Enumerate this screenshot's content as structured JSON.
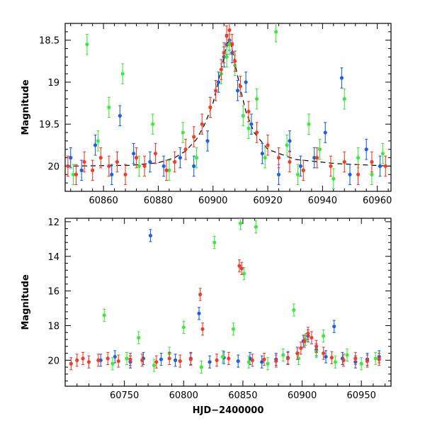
{
  "chart_data": [
    {
      "type": "scatter",
      "title": "",
      "xlabel": "",
      "ylabel": "Magnitude",
      "xlim": [
        60846,
        60965
      ],
      "ylim": [
        20.3,
        18.3
      ],
      "y_inverted": true,
      "xticks": [
        60860,
        60880,
        60900,
        60920,
        60940,
        60960
      ],
      "xtick_labels": [
        "60860",
        "60880",
        "60900",
        "60920",
        "60940",
        "60960"
      ],
      "yticks": [
        18.5,
        19,
        19.5,
        20
      ],
      "ytick_labels": [
        "18.5",
        "19",
        "19.5",
        "20"
      ],
      "colors": {
        "blue": "#1f5fe0",
        "green": "#3ee83e",
        "red": "#f03c28",
        "model": "#000000"
      },
      "model_curve": {
        "name": "microlensing model (dashed)",
        "x": [
          60846,
          60870,
          60880,
          60886,
          60890,
          60894,
          60897,
          60900,
          60902,
          60904,
          60905,
          60906,
          60907,
          60908,
          60910,
          60912,
          60915,
          60920,
          60930,
          60945,
          60965
        ],
        "y": [
          20.0,
          19.99,
          19.96,
          19.9,
          19.82,
          19.68,
          19.5,
          19.25,
          18.98,
          18.7,
          18.55,
          18.5,
          18.6,
          18.78,
          19.08,
          19.35,
          19.6,
          19.8,
          19.92,
          19.97,
          20.0
        ]
      },
      "series": [
        {
          "name": "blue",
          "x": [
            60848,
            60852,
            60857,
            60863,
            60866,
            60871,
            60877,
            60882,
            60888,
            60893,
            60898,
            60902,
            60904,
            60905,
            60906,
            60907,
            60909,
            60912,
            60914,
            60918,
            60924,
            60928,
            60932,
            60937,
            60941,
            60947,
            60950,
            60956,
            60961
          ],
          "y": [
            19.9,
            20.05,
            19.75,
            20.1,
            19.4,
            19.85,
            19.95,
            20.0,
            19.9,
            20.0,
            19.7,
            19.0,
            18.7,
            18.55,
            18.5,
            18.65,
            19.1,
            19.0,
            19.5,
            19.85,
            20.1,
            19.7,
            20.0,
            19.9,
            19.6,
            18.95,
            20.1,
            19.8,
            20.0
          ]
        },
        {
          "name": "green",
          "x": [
            60849,
            60854,
            60858,
            60862,
            60867,
            60873,
            60878,
            60884,
            60889,
            60894,
            60899,
            60903,
            60905,
            60906,
            60908,
            60911,
            60913,
            60916,
            60919,
            60923,
            60927,
            60931,
            60935,
            60939,
            60944,
            60948,
            60953,
            60958,
            60962
          ],
          "y": [
            20.1,
            18.55,
            19.7,
            19.3,
            18.9,
            20.0,
            19.5,
            20.05,
            19.6,
            19.9,
            19.3,
            18.9,
            18.7,
            18.55,
            18.8,
            19.4,
            19.55,
            19.2,
            19.9,
            18.4,
            19.75,
            20.1,
            19.5,
            19.8,
            20.15,
            19.2,
            19.9,
            20.1,
            19.85
          ]
        },
        {
          "name": "red",
          "x": [
            60847,
            60850,
            60853,
            60856,
            60859,
            60862,
            60865,
            60868,
            60872,
            60875,
            60879,
            60883,
            60886,
            60890,
            60893,
            60896,
            60899,
            60901,
            60903,
            60904,
            60905,
            60906,
            60907,
            60908,
            60910,
            60913,
            60916,
            60920,
            60924,
            60928,
            60933,
            60938,
            60943,
            60948,
            60953,
            60958,
            60963
          ],
          "y": [
            20.0,
            20.1,
            19.95,
            20.05,
            19.9,
            20.0,
            19.95,
            20.1,
            19.9,
            20.0,
            19.85,
            20.05,
            19.95,
            19.8,
            19.65,
            19.5,
            19.3,
            19.1,
            18.85,
            18.65,
            18.45,
            18.38,
            18.55,
            18.75,
            19.05,
            19.35,
            19.6,
            19.75,
            19.9,
            19.95,
            20.05,
            19.9,
            20.0,
            19.95,
            20.1,
            19.95,
            20.0
          ]
        }
      ]
    },
    {
      "type": "scatter",
      "title": "",
      "xlabel": "HJD−2400000",
      "ylabel": "Magnitude",
      "xlim": [
        60700,
        60975
      ],
      "ylim": [
        21.5,
        11.8
      ],
      "y_inverted": true,
      "xticks": [
        60750,
        60800,
        60850,
        60900,
        60950
      ],
      "xtick_labels": [
        "60750",
        "60800",
        "60850",
        "60900",
        "60950"
      ],
      "yticks": [
        12,
        14,
        16,
        18,
        20
      ],
      "ytick_labels": [
        "12",
        "14",
        "16",
        "18",
        "20"
      ],
      "colors": {
        "blue": "#1f5fe0",
        "green": "#3ee83e",
        "red": "#f03c28"
      },
      "series": [
        {
          "name": "blue",
          "x": [
            60730,
            60742,
            60755,
            60766,
            60772,
            60781,
            60793,
            60806,
            60813,
            60822,
            60834,
            60846,
            60856,
            60866,
            60878,
            60888,
            60896,
            60901,
            60905,
            60912,
            60920,
            60927,
            60934,
            60945,
            60955,
            60965
          ],
          "y": [
            20.0,
            19.8,
            20.1,
            19.9,
            12.8,
            19.95,
            20.0,
            19.9,
            17.3,
            20.1,
            19.85,
            20.05,
            19.9,
            20.1,
            19.95,
            19.85,
            19.6,
            18.9,
            18.6,
            19.4,
            19.8,
            18.05,
            19.9,
            20.1,
            19.95,
            19.8
          ]
        },
        {
          "name": "green",
          "x": [
            60733,
            60740,
            60752,
            60762,
            60775,
            60788,
            60800,
            60815,
            60826,
            60833,
            60842,
            60848,
            60851,
            60855,
            60861,
            60871,
            60884,
            60893,
            60897,
            60903,
            60912,
            60918,
            60928,
            60938,
            60950,
            60962
          ],
          "y": [
            17.4,
            20.2,
            19.9,
            18.7,
            20.3,
            19.6,
            18.1,
            20.4,
            13.2,
            19.8,
            18.2,
            12.1,
            15.0,
            20.1,
            12.3,
            20.2,
            19.7,
            17.1,
            19.9,
            18.8,
            19.5,
            18.6,
            20.1,
            19.7,
            20.2,
            19.9
          ]
        },
        {
          "name": "red",
          "x": [
            60705,
            60710,
            60715,
            60720,
            60728,
            60736,
            60745,
            60755,
            60765,
            60777,
            60788,
            60797,
            60806,
            60814,
            60816,
            60828,
            60838,
            60847,
            60849,
            60858,
            60868,
            60878,
            60888,
            60896,
            60899,
            60902,
            60905,
            60908,
            60912,
            60918,
            60925,
            60935,
            60945,
            60955,
            60965
          ],
          "y": [
            20.2,
            20.0,
            19.9,
            20.1,
            20.0,
            19.9,
            20.05,
            19.95,
            20.0,
            20.1,
            19.9,
            20.05,
            19.95,
            16.2,
            18.2,
            20.0,
            19.9,
            14.55,
            14.7,
            20.0,
            19.95,
            20.05,
            19.9,
            19.6,
            19.3,
            18.9,
            18.45,
            18.7,
            19.2,
            19.6,
            19.85,
            20.0,
            19.9,
            20.05,
            19.95
          ]
        }
      ]
    }
  ]
}
